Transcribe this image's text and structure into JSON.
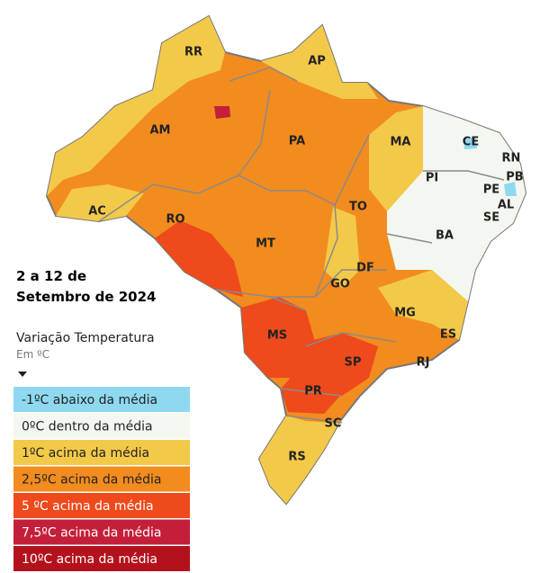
{
  "title": [
    "2 a 12 de",
    "Setembro de 2024"
  ],
  "legend": {
    "title": "Variação Temperatura",
    "unit": "Em ºC",
    "items": [
      {
        "label": "-1ºC abaixo da média",
        "color": "#8fd9f0"
      },
      {
        "label": "0ºC dentro da média",
        "color": "#f3f7ef"
      },
      {
        "label": "1ºC acima da média",
        "color": "#f3c94a"
      },
      {
        "label": "2,5ºC acima da média",
        "color": "#f28c1f"
      },
      {
        "label": "5 ºC acima da média",
        "color": "#ee4a1c"
      },
      {
        "label": "7,5ºC acima da média",
        "color": "#c41f3a"
      },
      {
        "label": "10ºC acima da média",
        "color": "#b3121c"
      }
    ]
  },
  "states": [
    "RR",
    "AP",
    "AM",
    "PA",
    "MA",
    "CE",
    "RN",
    "PB",
    "PI",
    "PE",
    "AL",
    "SE",
    "AC",
    "RO",
    "TO",
    "BA",
    "MT",
    "DF",
    "GO",
    "MG",
    "ES",
    "MS",
    "SP",
    "RJ",
    "PR",
    "SC",
    "RS"
  ]
}
